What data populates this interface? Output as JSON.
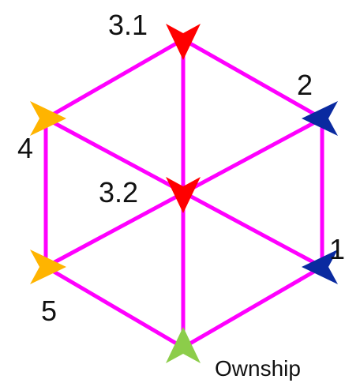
{
  "colors": {
    "edge": "#ff00ff",
    "red": "#ff0000",
    "blue": "#0a2aa0",
    "yellow": "#ffb400",
    "green": "#8ccd4a"
  },
  "nodes": {
    "n31": {
      "label": "3.1",
      "color_key": "red"
    },
    "n2": {
      "label": "2",
      "color_key": "blue"
    },
    "n4": {
      "label": "4",
      "color_key": "yellow"
    },
    "n32": {
      "label": "3.2",
      "color_key": "red"
    },
    "n5": {
      "label": "5",
      "color_key": "yellow"
    },
    "n1": {
      "label": "1",
      "color_key": "blue"
    },
    "own": {
      "label": "Ownship",
      "color_key": "green"
    }
  }
}
